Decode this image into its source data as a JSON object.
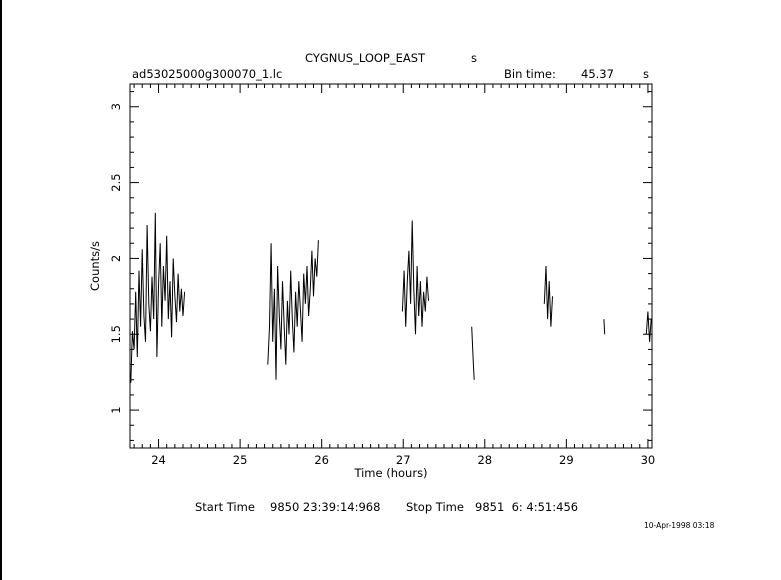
{
  "header": {
    "object": "CYGNUS_LOOP_EAST",
    "object_unit": "s",
    "filename": "ad53025000g300070_1.lc",
    "bin_label": "Bin time:",
    "bin_value": "45.37",
    "bin_unit": "s"
  },
  "footer": {
    "start_label": "Start Time",
    "start_value": "9850 23:39:14:968",
    "stop_label": "Stop Time",
    "stop_value": "9851  6: 4:51:456",
    "stamp": "10-Apr-1998 03:18"
  },
  "chart_data": {
    "type": "line",
    "title": "CYGNUS_LOOP_EAST",
    "xlabel": "Time (hours)",
    "ylabel": "Counts/s",
    "xlim": [
      23.65,
      30.05
    ],
    "ylim": [
      0.75,
      3.15
    ],
    "xticks": [
      24,
      25,
      26,
      27,
      28,
      29,
      30
    ],
    "yticks": [
      1,
      1.5,
      2,
      2.5,
      3
    ],
    "ytick_labels": [
      "1",
      "1.5",
      "2",
      "2.5",
      "3"
    ],
    "segments": [
      {
        "x_start": 23.65,
        "x_end": 24.33,
        "series": [
          {
            "x": 23.66,
            "y": 1.18
          },
          {
            "x": 23.68,
            "y": 1.52
          },
          {
            "x": 23.7,
            "y": 1.4
          },
          {
            "x": 23.72,
            "y": 1.78
          },
          {
            "x": 23.74,
            "y": 1.35
          },
          {
            "x": 23.76,
            "y": 1.92
          },
          {
            "x": 23.78,
            "y": 1.55
          },
          {
            "x": 23.8,
            "y": 2.06
          },
          {
            "x": 23.82,
            "y": 1.62
          },
          {
            "x": 23.84,
            "y": 1.45
          },
          {
            "x": 23.86,
            "y": 2.22
          },
          {
            "x": 23.88,
            "y": 1.7
          },
          {
            "x": 23.9,
            "y": 1.52
          },
          {
            "x": 23.92,
            "y": 1.88
          },
          {
            "x": 23.94,
            "y": 1.6
          },
          {
            "x": 23.96,
            "y": 2.3
          },
          {
            "x": 23.98,
            "y": 1.35
          },
          {
            "x": 24.0,
            "y": 1.82
          },
          {
            "x": 24.02,
            "y": 2.1
          },
          {
            "x": 24.04,
            "y": 1.55
          },
          {
            "x": 24.06,
            "y": 1.95
          },
          {
            "x": 24.08,
            "y": 1.72
          },
          {
            "x": 24.1,
            "y": 2.15
          },
          {
            "x": 24.12,
            "y": 1.6
          },
          {
            "x": 24.14,
            "y": 1.85
          },
          {
            "x": 24.16,
            "y": 1.48
          },
          {
            "x": 24.18,
            "y": 2.0
          },
          {
            "x": 24.2,
            "y": 1.75
          },
          {
            "x": 24.22,
            "y": 1.58
          },
          {
            "x": 24.24,
            "y": 1.9
          },
          {
            "x": 24.26,
            "y": 1.65
          },
          {
            "x": 24.28,
            "y": 1.8
          },
          {
            "x": 24.3,
            "y": 1.62
          },
          {
            "x": 24.32,
            "y": 1.78
          }
        ]
      },
      {
        "x_start": 25.33,
        "x_end": 25.98,
        "series": [
          {
            "x": 25.34,
            "y": 1.3
          },
          {
            "x": 25.36,
            "y": 1.55
          },
          {
            "x": 25.38,
            "y": 2.1
          },
          {
            "x": 25.4,
            "y": 1.45
          },
          {
            "x": 25.42,
            "y": 1.8
          },
          {
            "x": 25.44,
            "y": 1.2
          },
          {
            "x": 25.46,
            "y": 1.95
          },
          {
            "x": 25.48,
            "y": 1.62
          },
          {
            "x": 25.5,
            "y": 1.4
          },
          {
            "x": 25.52,
            "y": 1.85
          },
          {
            "x": 25.54,
            "y": 1.55
          },
          {
            "x": 25.56,
            "y": 1.3
          },
          {
            "x": 25.58,
            "y": 1.72
          },
          {
            "x": 25.6,
            "y": 1.5
          },
          {
            "x": 25.62,
            "y": 1.92
          },
          {
            "x": 25.64,
            "y": 1.6
          },
          {
            "x": 25.66,
            "y": 1.38
          },
          {
            "x": 25.68,
            "y": 1.78
          },
          {
            "x": 25.7,
            "y": 1.55
          },
          {
            "x": 25.72,
            "y": 1.85
          },
          {
            "x": 25.74,
            "y": 1.65
          },
          {
            "x": 25.76,
            "y": 1.45
          },
          {
            "x": 25.78,
            "y": 1.9
          },
          {
            "x": 25.8,
            "y": 1.7
          },
          {
            "x": 25.82,
            "y": 1.95
          },
          {
            "x": 25.84,
            "y": 1.62
          },
          {
            "x": 25.86,
            "y": 1.8
          },
          {
            "x": 25.88,
            "y": 2.05
          },
          {
            "x": 25.9,
            "y": 1.75
          },
          {
            "x": 25.92,
            "y": 2.0
          },
          {
            "x": 25.94,
            "y": 1.88
          },
          {
            "x": 25.96,
            "y": 2.12
          }
        ]
      },
      {
        "x_start": 26.98,
        "x_end": 27.32,
        "series": [
          {
            "x": 26.99,
            "y": 1.65
          },
          {
            "x": 27.01,
            "y": 1.92
          },
          {
            "x": 27.03,
            "y": 1.55
          },
          {
            "x": 27.05,
            "y": 1.85
          },
          {
            "x": 27.07,
            "y": 2.05
          },
          {
            "x": 27.09,
            "y": 1.7
          },
          {
            "x": 27.11,
            "y": 2.25
          },
          {
            "x": 27.13,
            "y": 1.8
          },
          {
            "x": 27.15,
            "y": 1.5
          },
          {
            "x": 27.17,
            "y": 1.95
          },
          {
            "x": 27.19,
            "y": 1.62
          },
          {
            "x": 27.21,
            "y": 1.85
          },
          {
            "x": 27.23,
            "y": 1.55
          },
          {
            "x": 27.25,
            "y": 1.78
          },
          {
            "x": 27.27,
            "y": 1.65
          },
          {
            "x": 27.29,
            "y": 1.88
          },
          {
            "x": 27.31,
            "y": 1.72
          }
        ]
      },
      {
        "x_start": 27.83,
        "x_end": 27.88,
        "series": [
          {
            "x": 27.84,
            "y": 1.55
          },
          {
            "x": 27.86,
            "y": 1.3
          },
          {
            "x": 27.87,
            "y": 1.2
          }
        ]
      },
      {
        "x_start": 28.72,
        "x_end": 28.84,
        "series": [
          {
            "x": 28.73,
            "y": 1.7
          },
          {
            "x": 28.75,
            "y": 1.95
          },
          {
            "x": 28.77,
            "y": 1.6
          },
          {
            "x": 28.79,
            "y": 1.85
          },
          {
            "x": 28.81,
            "y": 1.55
          },
          {
            "x": 28.83,
            "y": 1.75
          }
        ]
      },
      {
        "x_start": 29.45,
        "x_end": 29.48,
        "series": [
          {
            "x": 29.46,
            "y": 1.6
          },
          {
            "x": 29.47,
            "y": 1.5
          }
        ]
      },
      {
        "x_start": 29.97,
        "x_end": 30.05,
        "series": [
          {
            "x": 29.98,
            "y": 1.5
          },
          {
            "x": 30.0,
            "y": 1.65
          },
          {
            "x": 30.02,
            "y": 1.45
          },
          {
            "x": 30.04,
            "y": 1.6
          }
        ]
      }
    ]
  }
}
